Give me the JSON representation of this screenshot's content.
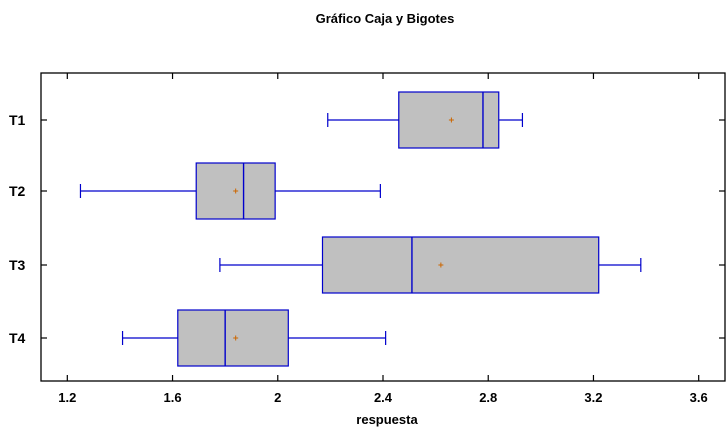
{
  "chart_data": {
    "type": "boxplot",
    "title": "Gráfico Caja y Bigotes",
    "xlabel": "respuesta",
    "ylabel": "",
    "orientation": "horizontal",
    "xlim": [
      1.1,
      3.7
    ],
    "xticks": [
      1.2,
      1.6,
      2,
      2.4,
      2.8,
      3.2,
      3.6
    ],
    "xtick_labels": [
      "1.2",
      "1.6",
      "2",
      "2.4",
      "2.8",
      "3.2",
      "3.6"
    ],
    "grid": false,
    "categories": [
      "T1",
      "T2",
      "T3",
      "T4"
    ],
    "series": [
      {
        "category": "T1",
        "min": 2.19,
        "q1": 2.46,
        "median": 2.78,
        "q3": 2.84,
        "max": 2.93,
        "mean": 2.66
      },
      {
        "category": "T2",
        "min": 1.25,
        "q1": 1.69,
        "median": 1.87,
        "q3": 1.99,
        "max": 2.39,
        "mean": 1.84
      },
      {
        "category": "T3",
        "min": 1.78,
        "q1": 2.17,
        "median": 2.51,
        "q3": 3.22,
        "max": 3.38,
        "mean": 2.62
      },
      {
        "category": "T4",
        "min": 1.41,
        "q1": 1.62,
        "median": 1.8,
        "q3": 2.04,
        "max": 2.41,
        "mean": 1.84
      }
    ],
    "colors": {
      "box_fill": "#c0c0c0",
      "box_stroke": "#0000cc",
      "mean_marker": "#cc6600",
      "axis": "#000000"
    }
  }
}
